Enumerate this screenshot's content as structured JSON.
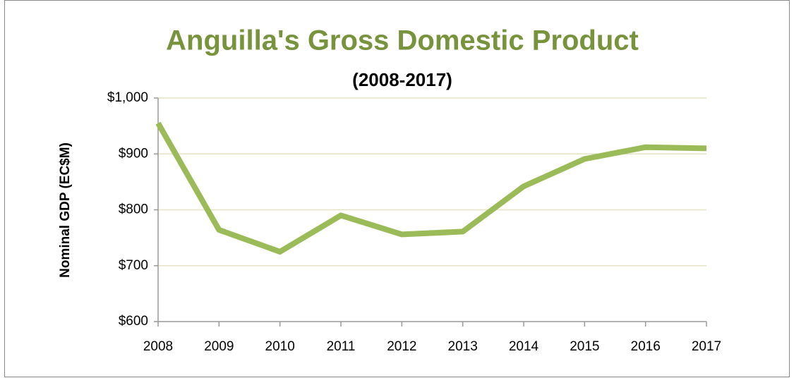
{
  "chart_data": {
    "type": "line",
    "title": "Anguilla's Gross Domestic Product",
    "subtitle": "(2008-2017)",
    "y_label": "Nominal GDP (EC$M)",
    "x": [
      2008,
      2009,
      2010,
      2011,
      2012,
      2013,
      2014,
      2015,
      2016,
      2017
    ],
    "series": [
      {
        "name": "Nominal GDP",
        "color": "#9bbb59",
        "values": [
          955,
          764,
          725,
          790,
          756,
          761,
          842,
          891,
          912,
          910
        ]
      }
    ],
    "xlim": [
      2008,
      2017
    ],
    "xticks": [
      2008,
      2009,
      2010,
      2011,
      2012,
      2013,
      2014,
      2015,
      2016,
      2017
    ],
    "ylim": [
      600,
      1000
    ],
    "yticks": [
      {
        "value": 600,
        "label": "$600"
      },
      {
        "value": 700,
        "label": "$700"
      },
      {
        "value": 800,
        "label": "$800"
      },
      {
        "value": 900,
        "label": "$900"
      },
      {
        "value": 1000,
        "label": "$1,000"
      }
    ],
    "grid": true,
    "legend": false
  }
}
